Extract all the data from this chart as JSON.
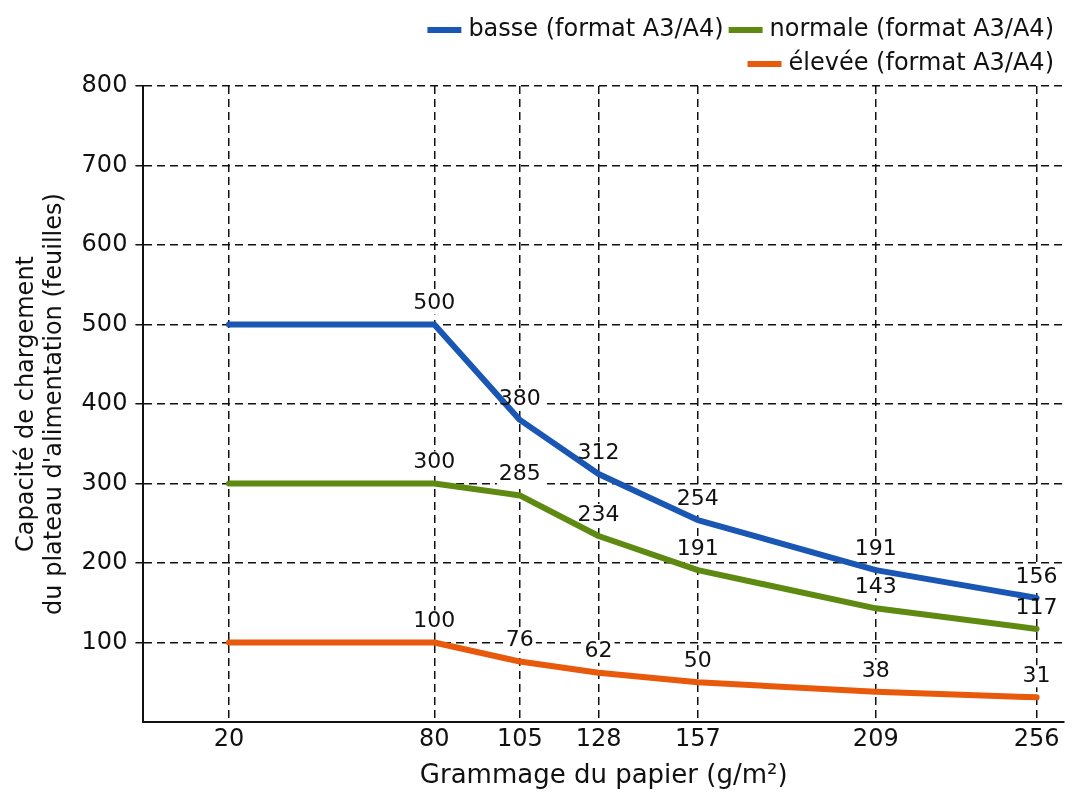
{
  "chart_data": {
    "type": "line",
    "xlabel": "Grammage du papier (g/m²)",
    "ylabel": "Capacité de chargement\ndu plateau d'alimentation (feuilles)",
    "x": [
      20,
      80,
      105,
      128,
      157,
      209,
      256
    ],
    "xlim": [
      -5,
      264
    ],
    "xticks": [
      20,
      80,
      105,
      128,
      157,
      209,
      256
    ],
    "ylim": [
      0,
      800
    ],
    "yticks": [
      100,
      200,
      300,
      400,
      500,
      600,
      700,
      800
    ],
    "grid": true,
    "legend": "top right",
    "marker": "none",
    "line_style": "solid",
    "series": [
      {
        "name": "basse (format A3/A4)",
        "color": "#1a56b4",
        "values": [
          500,
          500,
          380,
          312,
          254,
          191,
          156
        ],
        "value_labels": [
          null,
          "500",
          "380",
          "312",
          "254",
          "191",
          "156"
        ]
      },
      {
        "name": "normale (format A3/A4)",
        "color": "#5e8a12",
        "values": [
          300,
          300,
          285,
          234,
          191,
          143,
          117
        ],
        "value_labels": [
          null,
          "300",
          "285",
          "234",
          "191",
          "143",
          "117"
        ]
      },
      {
        "name": "élevée (format A3/A4)",
        "color": "#e8590c",
        "values": [
          100,
          100,
          76,
          62,
          50,
          38,
          31
        ],
        "value_labels": [
          null,
          "100",
          "76",
          "62",
          "50",
          "38",
          "31"
        ]
      }
    ]
  }
}
